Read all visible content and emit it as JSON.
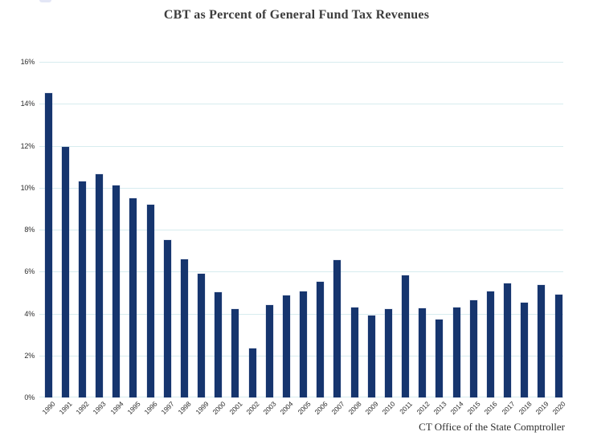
{
  "colors": {
    "background": "#ffffff",
    "bar": "#16356e",
    "gridline": "#d7ecef",
    "title_text": "#3d3d3d",
    "axis_text": "#2e2e2e"
  },
  "chart_data": {
    "type": "bar",
    "title": "CBT as Percent of General Fund Tax Revenues",
    "source": "CT Office of the State Comptroller",
    "categories": [
      "1990",
      "1991",
      "1992",
      "1993",
      "1994",
      "1995",
      "1996",
      "1997",
      "1998",
      "1999",
      "2000",
      "2001",
      "2002",
      "2003",
      "2004",
      "2005",
      "2006",
      "2007",
      "2008",
      "2009",
      "2010",
      "2011",
      "2012",
      "2013",
      "2014",
      "2015",
      "2016",
      "2017",
      "2018",
      "2019",
      "2020"
    ],
    "values": [
      14.5,
      11.95,
      10.3,
      10.65,
      10.1,
      9.5,
      9.2,
      7.5,
      6.6,
      5.9,
      5.0,
      4.2,
      2.35,
      4.4,
      4.85,
      5.05,
      5.5,
      6.55,
      4.3,
      3.9,
      4.2,
      5.8,
      4.25,
      3.7,
      4.3,
      4.65,
      5.05,
      5.45,
      4.5,
      5.35,
      4.9
    ],
    "xlabel": "",
    "ylabel": "",
    "ylim": [
      0,
      16
    ],
    "ytick_step": 2,
    "ytick_labels": [
      "0%",
      "2%",
      "4%",
      "6%",
      "8%",
      "10%",
      "12%",
      "14%",
      "16%"
    ],
    "grid": true,
    "legend": false,
    "bar_color": "#16356e",
    "x_label_rotation_deg": -45
  }
}
